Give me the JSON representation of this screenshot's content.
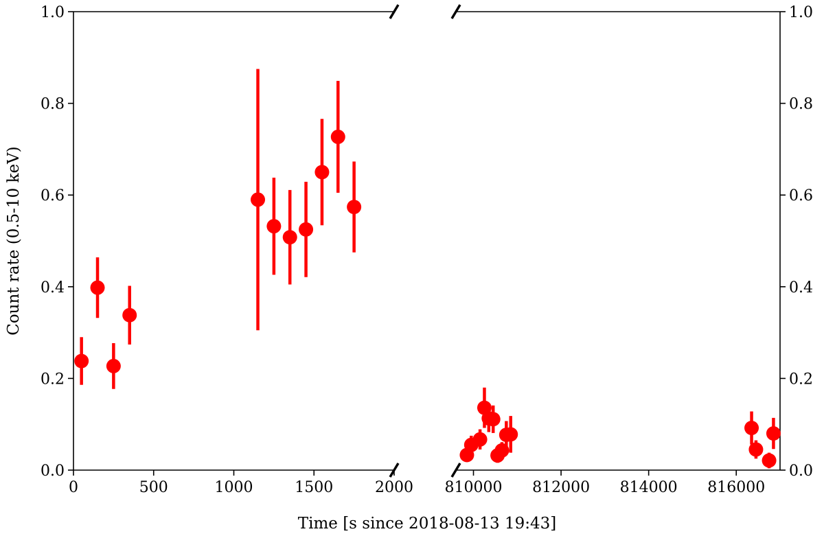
{
  "chart_data": {
    "type": "scatter",
    "xlabel": "Time [s since 2018-08-13 19:43]",
    "ylabel": "Count rate (0.5-10 keV)",
    "ylim": [
      0,
      1.0
    ],
    "yticks": [
      "0.0",
      "0.2",
      "0.4",
      "0.6",
      "0.8",
      "1.0"
    ],
    "grid": false,
    "broken_x_axis": true,
    "marker_color": "#ff0000",
    "panels": [
      {
        "xlim": [
          0,
          2000
        ],
        "xticks": [
          "0",
          "500",
          "1000",
          "1500",
          "2000"
        ],
        "points": [
          {
            "x": 50,
            "y": 0.238,
            "err": 0.052
          },
          {
            "x": 150,
            "y": 0.398,
            "err": 0.066
          },
          {
            "x": 250,
            "y": 0.227,
            "err": 0.05
          },
          {
            "x": 350,
            "y": 0.338,
            "err": 0.064
          },
          {
            "x": 1150,
            "y": 0.59,
            "err": 0.285
          },
          {
            "x": 1250,
            "y": 0.532,
            "err": 0.106
          },
          {
            "x": 1350,
            "y": 0.508,
            "err": 0.103
          },
          {
            "x": 1450,
            "y": 0.525,
            "err": 0.104
          },
          {
            "x": 1550,
            "y": 0.65,
            "err": 0.116
          },
          {
            "x": 1650,
            "y": 0.727,
            "err": 0.122
          },
          {
            "x": 1750,
            "y": 0.574,
            "err": 0.099
          }
        ]
      },
      {
        "xlim": [
          809600,
          817000
        ],
        "xticks": [
          "810000",
          "812000",
          "814000",
          "816000"
        ],
        "points": [
          {
            "x": 809850,
            "y": 0.033,
            "err": 0.015
          },
          {
            "x": 809950,
            "y": 0.055,
            "err": 0.02
          },
          {
            "x": 810150,
            "y": 0.067,
            "err": 0.022
          },
          {
            "x": 810250,
            "y": 0.136,
            "err": 0.044
          },
          {
            "x": 810350,
            "y": 0.113,
            "err": 0.03
          },
          {
            "x": 810450,
            "y": 0.111,
            "err": 0.03
          },
          {
            "x": 810550,
            "y": 0.032,
            "err": 0.016
          },
          {
            "x": 810650,
            "y": 0.043,
            "err": 0.018
          },
          {
            "x": 810750,
            "y": 0.077,
            "err": 0.03
          },
          {
            "x": 810850,
            "y": 0.078,
            "err": 0.04
          },
          {
            "x": 816350,
            "y": 0.092,
            "err": 0.036
          },
          {
            "x": 816450,
            "y": 0.045,
            "err": 0.02
          },
          {
            "x": 816750,
            "y": 0.021,
            "err": 0.017
          },
          {
            "x": 816850,
            "y": 0.08,
            "err": 0.034
          }
        ]
      }
    ]
  }
}
